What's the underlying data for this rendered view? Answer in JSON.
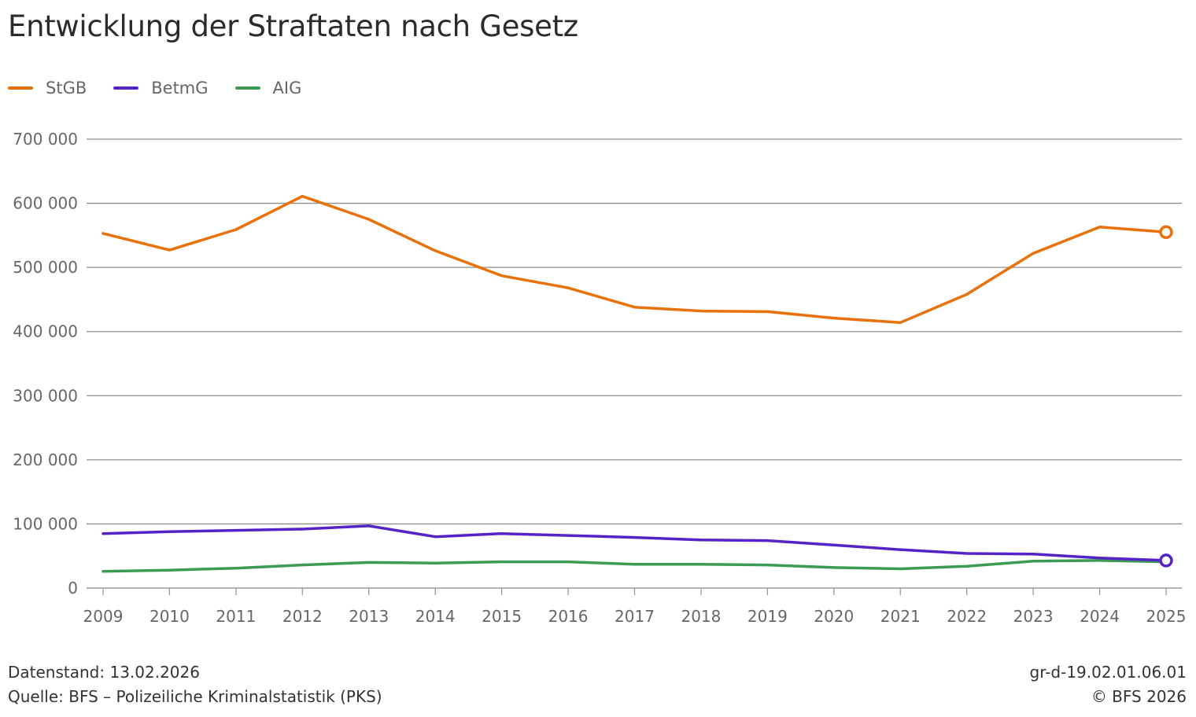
{
  "header": {
    "title": "Entwicklung der Straftaten nach Gesetz"
  },
  "chart_data": {
    "type": "line",
    "title": "Entwicklung der Straftaten nach Gesetz",
    "xlabel": "",
    "ylabel": "",
    "x": [
      "2009",
      "2010",
      "2011",
      "2012",
      "2013",
      "2014",
      "2015",
      "2016",
      "2017",
      "2018",
      "2019",
      "2020",
      "2021",
      "2022",
      "2023",
      "2024",
      "2025"
    ],
    "ylim": [
      0,
      700000
    ],
    "yticks": [
      0,
      100000,
      200000,
      300000,
      400000,
      500000,
      600000,
      700000
    ],
    "ytick_labels": [
      "0",
      "100 000",
      "200 000",
      "300 000",
      "400 000",
      "500 000",
      "600 000",
      "700 000"
    ],
    "grid": true,
    "legend_position": "top-left",
    "series": [
      {
        "name": "StGB",
        "color": "#e8710a",
        "values": [
          553000,
          527000,
          559000,
          611000,
          575000,
          526000,
          487000,
          468000,
          438000,
          432000,
          431000,
          421000,
          414000,
          458000,
          522000,
          563000,
          555000
        ]
      },
      {
        "name": "BetmG",
        "color": "#5424c8",
        "values": [
          85000,
          88000,
          90000,
          92000,
          97000,
          80000,
          85000,
          82000,
          79000,
          75000,
          74000,
          67000,
          60000,
          54000,
          53000,
          47000,
          43000
        ]
      },
      {
        "name": "AIG",
        "color": "#3d9a52",
        "values": [
          26000,
          28000,
          31000,
          36000,
          40000,
          39000,
          41000,
          41000,
          37000,
          37000,
          36000,
          32000,
          30000,
          34000,
          42000,
          43000,
          41000
        ]
      }
    ]
  },
  "footer": {
    "data_status": "Datenstand: 13.02.2026",
    "source": "Quelle: BFS – Polizeiliche Kriminalstatistik (PKS)",
    "chart_id": "gr-d-19.02.01.06.01",
    "copyright": "© BFS 2026"
  }
}
